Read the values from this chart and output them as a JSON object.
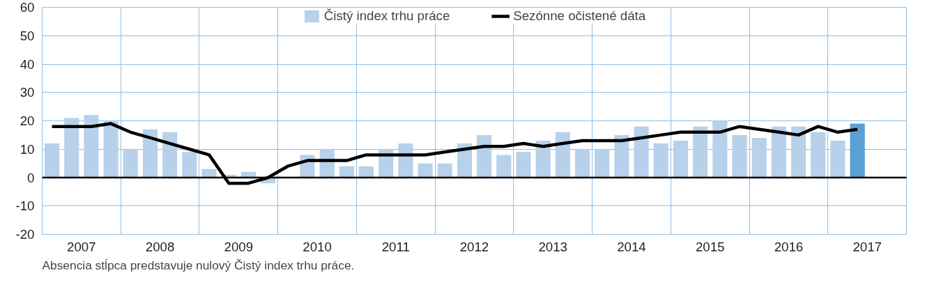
{
  "chart_data": {
    "type": "bar",
    "x": [
      2007.125,
      2007.375,
      2007.625,
      2007.875,
      2008.125,
      2008.375,
      2008.625,
      2008.875,
      2009.125,
      2009.375,
      2009.625,
      2009.875,
      2010.125,
      2010.375,
      2010.625,
      2010.875,
      2011.125,
      2011.375,
      2011.625,
      2011.875,
      2012.125,
      2012.375,
      2012.625,
      2012.875,
      2013.125,
      2013.375,
      2013.625,
      2013.875,
      2014.125,
      2014.375,
      2014.625,
      2014.875,
      2015.125,
      2015.375,
      2015.625,
      2015.875,
      2016.125,
      2016.375,
      2016.625,
      2016.875,
      2017.125,
      2017.375
    ],
    "series": [
      {
        "name": "Čistý index trhu práce",
        "color": "#b7d1ea",
        "colors": [
          "#b7d1ea",
          "#b7d1ea",
          "#b7d1ea",
          "#b7d1ea",
          "#b7d1ea",
          "#b7d1ea",
          "#b7d1ea",
          "#b7d1ea",
          "#b7d1ea",
          "#b7d1ea",
          "#b7d1ea",
          "#b7d1ea",
          "#b7d1ea",
          "#b7d1ea",
          "#b7d1ea",
          "#b7d1ea",
          "#b7d1ea",
          "#b7d1ea",
          "#b7d1ea",
          "#b7d1ea",
          "#b7d1ea",
          "#b7d1ea",
          "#b7d1ea",
          "#b7d1ea",
          "#b7d1ea",
          "#b7d1ea",
          "#b7d1ea",
          "#b7d1ea",
          "#b7d1ea",
          "#b7d1ea",
          "#b7d1ea",
          "#b7d1ea",
          "#b7d1ea",
          "#b7d1ea",
          "#b7d1ea",
          "#b7d1ea",
          "#b7d1ea",
          "#b7d1ea",
          "#b7d1ea",
          "#b7d1ea",
          "#b7d1ea",
          "#5aa0d3"
        ],
        "values": [
          12,
          21,
          22,
          20,
          10,
          17,
          16,
          9,
          3,
          1,
          2,
          -2,
          0,
          8,
          10,
          4,
          4,
          10,
          12,
          5,
          5,
          12,
          15,
          8,
          9,
          13,
          16,
          10,
          10,
          15,
          18,
          12,
          13,
          18,
          20,
          15,
          14,
          18,
          18,
          16,
          13,
          19
        ]
      },
      {
        "name": "Sezónne očistené dáta",
        "type": "line",
        "color": "#000000",
        "values": [
          18,
          18,
          18,
          19,
          16,
          14,
          12,
          10,
          8,
          -2,
          -2,
          0,
          4,
          6,
          6,
          6,
          8,
          8,
          8,
          8,
          9,
          10,
          11,
          11,
          12,
          11,
          12,
          13,
          13,
          13,
          14,
          15,
          16,
          16,
          16,
          18,
          17,
          16,
          15,
          18,
          16,
          17
        ]
      }
    ],
    "xlim": [
      2007,
      2018
    ],
    "xticks": [
      {
        "value": 2007,
        "label": null
      },
      {
        "value": 2007.5,
        "label": "2007"
      },
      {
        "value": 2008,
        "label": null
      },
      {
        "value": 2008.5,
        "label": "2008"
      },
      {
        "value": 2009,
        "label": null
      },
      {
        "value": 2009.5,
        "label": "2009"
      },
      {
        "value": 2010,
        "label": null
      },
      {
        "value": 2010.5,
        "label": "2010"
      },
      {
        "value": 2011,
        "label": null
      },
      {
        "value": 2011.5,
        "label": "2011"
      },
      {
        "value": 2012,
        "label": null
      },
      {
        "value": 2012.5,
        "label": "2012"
      },
      {
        "value": 2013,
        "label": null
      },
      {
        "value": 2013.5,
        "label": "2013"
      },
      {
        "value": 2014,
        "label": null
      },
      {
        "value": 2014.5,
        "label": "2014"
      },
      {
        "value": 2015,
        "label": null
      },
      {
        "value": 2015.5,
        "label": "2015"
      },
      {
        "value": 2016,
        "label": null
      },
      {
        "value": 2016.5,
        "label": "2016"
      },
      {
        "value": 2017,
        "label": null
      },
      {
        "value": 2017.5,
        "label": "2017"
      },
      {
        "value": 2018,
        "label": null
      }
    ],
    "ylim": [
      -20,
      60
    ],
    "yticks": [
      -20,
      -10,
      0,
      10,
      20,
      30,
      40,
      50,
      60
    ],
    "ref_lines": [
      {
        "axis": "y",
        "value": 0,
        "color": "#000000"
      }
    ],
    "grid": true,
    "legend": "top",
    "line_style": "solid",
    "marker": "none",
    "annotations": [
      "Absencia stĺpca predstavuje nulový Čistý index trhu práce."
    ]
  }
}
